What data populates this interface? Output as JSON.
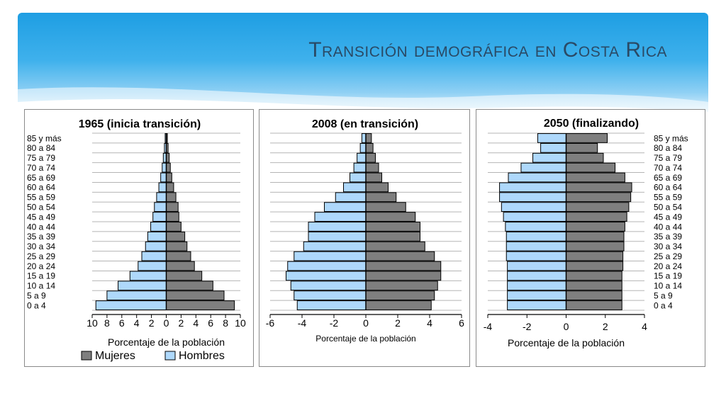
{
  "slide": {
    "title": "Transición demográfica en Costa Rica"
  },
  "colors": {
    "bar_left": "#aed8fb",
    "bar_right": "#7f7f7f",
    "accent": "#1e9ee3",
    "title": "#2a4a66"
  },
  "age_groups": [
    "0 a 4",
    "5 a 9",
    "10 a 14",
    "15 a 19",
    "20 a 24",
    "25 a 29",
    "30 a 34",
    "35 a 39",
    "40 a 44",
    "45 a 49",
    "50 a 54",
    "55 a 59",
    "60 a 64",
    "65 a 69",
    "70 a 74",
    "75 a 79",
    "80 a 84",
    "85 y más"
  ],
  "chart_data": [
    {
      "type": "bar",
      "title": "1965 (inicia transición)",
      "xlabel": "Porcentaje de la población",
      "categories": [
        "0 a 4",
        "5 a 9",
        "10 a 14",
        "15 a 19",
        "20 a 24",
        "25 a 29",
        "30 a 34",
        "35 a 39",
        "40 a 44",
        "45 a 49",
        "50 a 54",
        "55 a 59",
        "60 a 64",
        "65 a 69",
        "70 a 74",
        "75 a 79",
        "80 a 84",
        "85 y más"
      ],
      "series": [
        {
          "name": "Hombres",
          "side": "left",
          "values": [
            9.5,
            8.0,
            6.5,
            4.9,
            3.8,
            3.3,
            2.8,
            2.5,
            2.1,
            1.8,
            1.6,
            1.3,
            1.0,
            0.75,
            0.55,
            0.4,
            0.25,
            0.15
          ]
        },
        {
          "name": "Mujeres",
          "side": "right",
          "values": [
            9.2,
            7.8,
            6.3,
            4.8,
            3.8,
            3.3,
            2.8,
            2.5,
            2.0,
            1.7,
            1.6,
            1.3,
            1.0,
            0.75,
            0.55,
            0.4,
            0.25,
            0.15
          ]
        }
      ],
      "xticks": [
        "10",
        "8",
        "6",
        "4",
        "2",
        "0",
        "2",
        "4",
        "6",
        "8",
        "10"
      ],
      "xlim": [
        -10,
        10
      ],
      "legend": {
        "position": "bottom",
        "items": [
          "Mujeres",
          "Hombres"
        ]
      },
      "grid": true
    },
    {
      "type": "bar",
      "title": "2008 (en transición)",
      "xlabel": "Porcentaje de la población",
      "categories": [
        "0 a 4",
        "5 a 9",
        "10 a 14",
        "15 a 19",
        "20 a 24",
        "25 a 29",
        "30 a 34",
        "35 a 39",
        "40 a 44",
        "45 a 49",
        "50 a 54",
        "55 a 59",
        "60 a 64",
        "65 a 69",
        "70 a 74",
        "75 a 79",
        "80 a 84",
        "85 y más"
      ],
      "series": [
        {
          "side": "left",
          "values": [
            4.3,
            4.5,
            4.7,
            5.0,
            4.9,
            4.5,
            3.9,
            3.6,
            3.6,
            3.2,
            2.6,
            1.9,
            1.4,
            1.0,
            0.75,
            0.55,
            0.35,
            0.25
          ]
        },
        {
          "side": "right",
          "values": [
            4.1,
            4.3,
            4.5,
            4.7,
            4.7,
            4.3,
            3.7,
            3.4,
            3.4,
            3.1,
            2.5,
            1.9,
            1.4,
            1.0,
            0.8,
            0.6,
            0.45,
            0.35
          ]
        }
      ],
      "xticks": [
        "-6",
        "-4",
        "-2",
        "0",
        "2",
        "4",
        "6"
      ],
      "xlim": [
        -6,
        6
      ],
      "grid": true
    },
    {
      "type": "bar",
      "title": "2050 (finalizando)",
      "xlabel": "Porcentaje de la población",
      "categories": [
        "0 a 4",
        "5 a 9",
        "10 a 14",
        "15 a 19",
        "20 a 24",
        "25 a 29",
        "30 a 34",
        "35 a 39",
        "40 a 44",
        "45 a 49",
        "50 a 54",
        "55 a 59",
        "60 a 64",
        "65 a 69",
        "70 a 74",
        "75 a 79",
        "80 a 84",
        "85 y más"
      ],
      "series": [
        {
          "side": "left",
          "values": [
            3.0,
            3.0,
            3.0,
            3.0,
            3.0,
            3.05,
            3.05,
            3.05,
            3.1,
            3.2,
            3.3,
            3.4,
            3.4,
            2.95,
            2.3,
            1.7,
            1.3,
            1.45
          ]
        },
        {
          "side": "right",
          "values": [
            2.85,
            2.85,
            2.85,
            2.85,
            2.9,
            2.9,
            2.95,
            2.95,
            3.0,
            3.1,
            3.2,
            3.3,
            3.35,
            3.0,
            2.5,
            1.9,
            1.6,
            2.1
          ]
        }
      ],
      "xticks": [
        "-4",
        "-2",
        "0",
        "2",
        "4"
      ],
      "xlim": [
        -4,
        4
      ],
      "grid": true
    }
  ]
}
